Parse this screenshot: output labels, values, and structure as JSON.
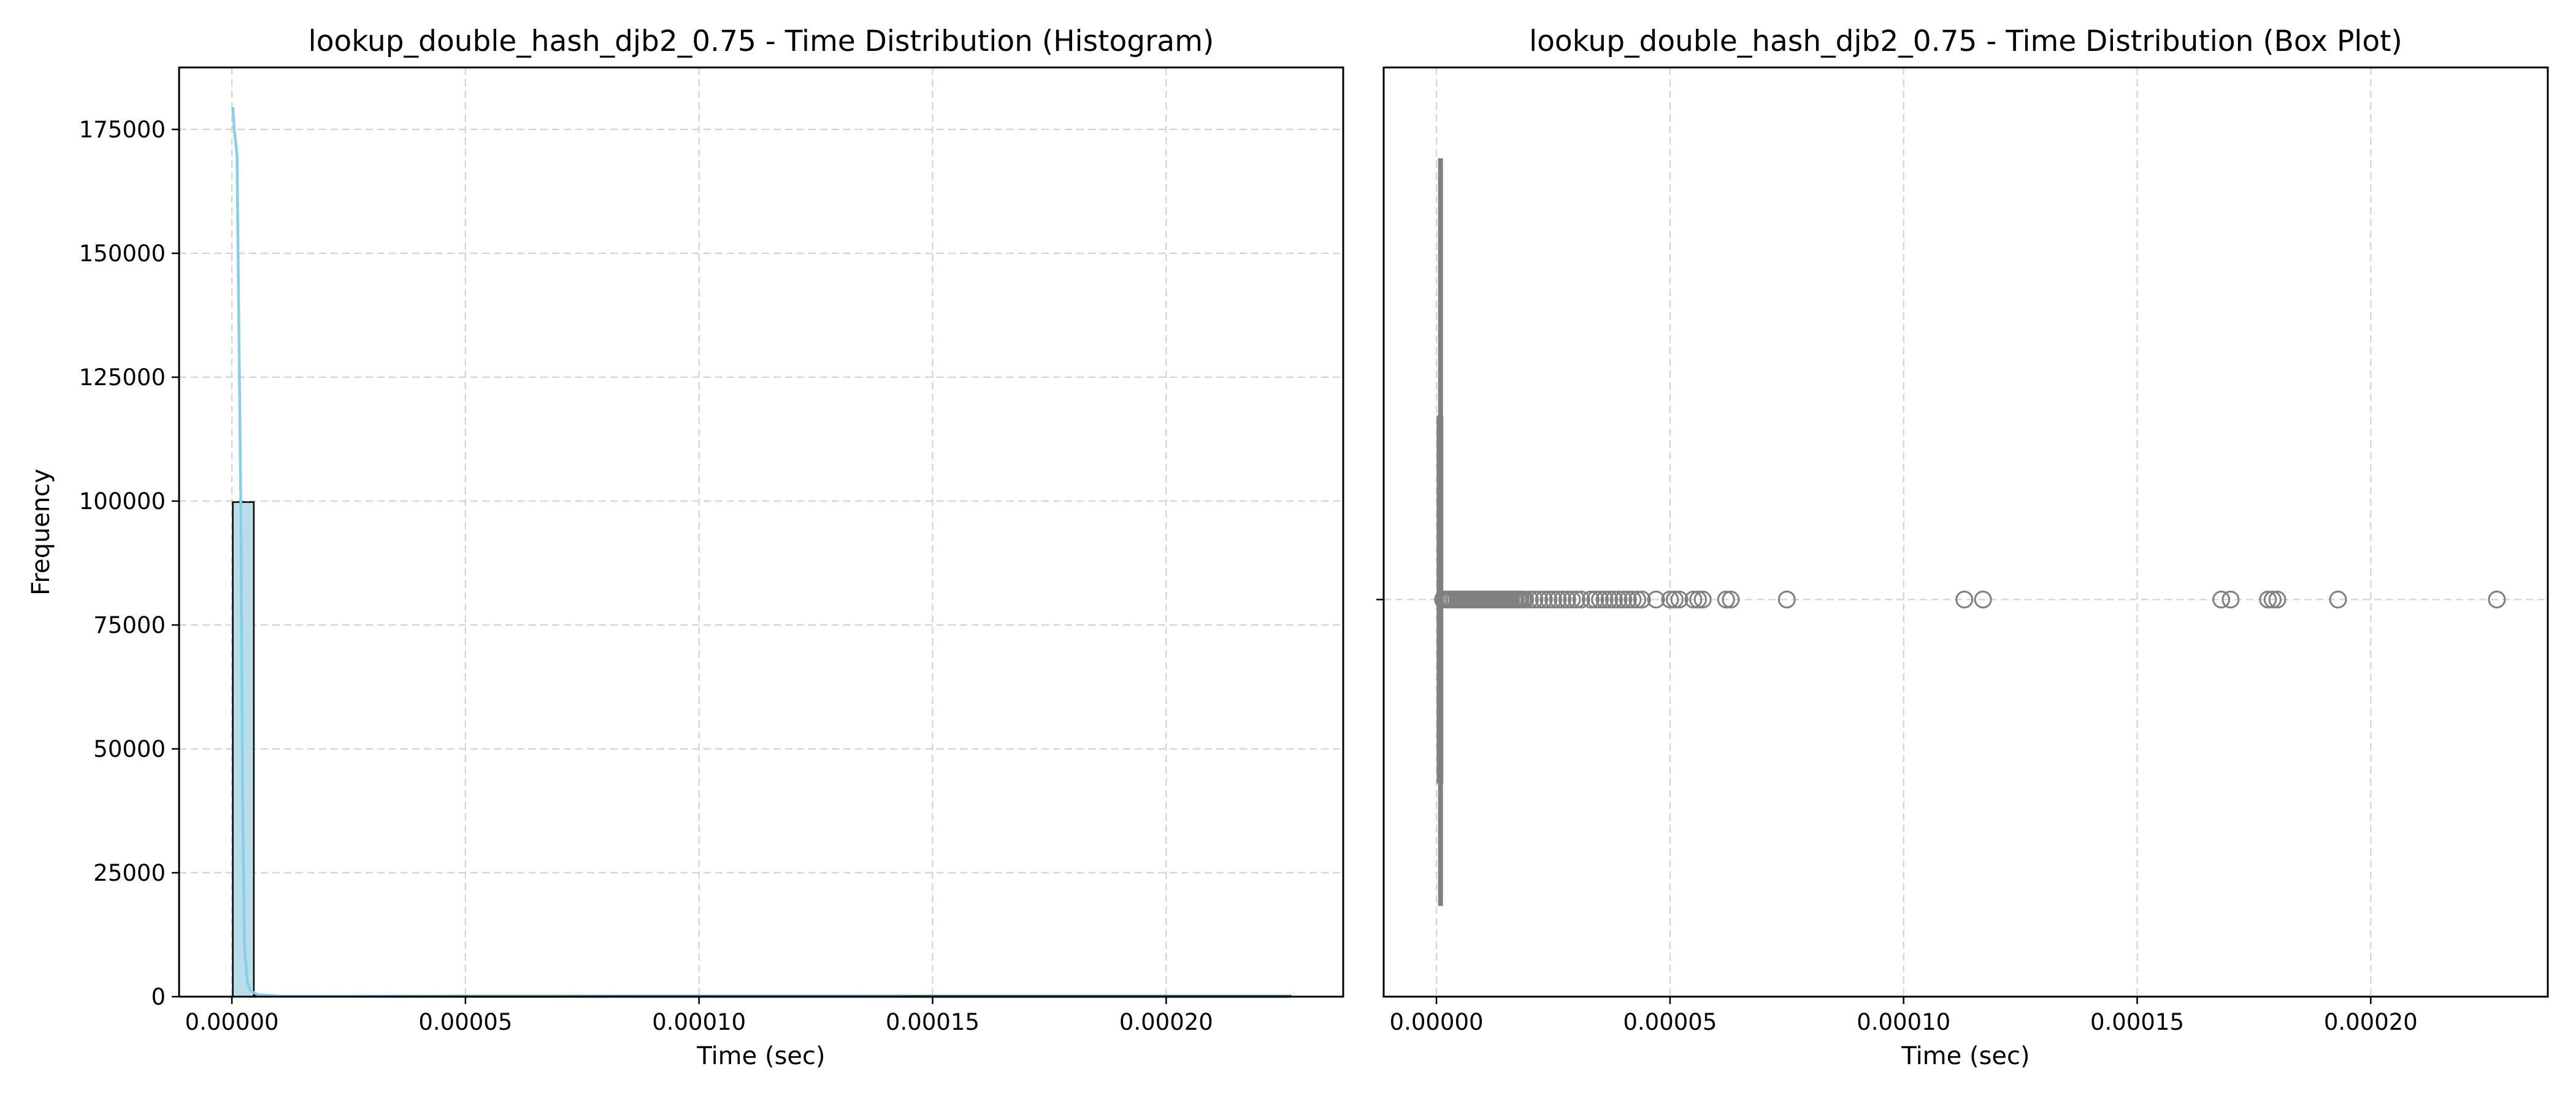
{
  "colors": {
    "hist_fill": "#add8e6",
    "hist_edge": "#000000",
    "kde_line": "#87ceeb",
    "box_gray": "#808080",
    "grid": "#d3d3d3",
    "axis": "#000000"
  },
  "chart_data": [
    {
      "type": "bar",
      "subtype": "histogram",
      "title": "lookup_double_hash_djb2_0.75 - Time Distribution (Histogram)",
      "xlabel": "Time (sec)",
      "ylabel": "Frequency",
      "xlim": [
        -1.13e-05,
        0.0002379
      ],
      "ylim": [
        0,
        187500
      ],
      "xticks": [
        0,
        5e-05,
        0.0001,
        0.00015,
        0.0002
      ],
      "xtick_labels": [
        "0.00000",
        "0.00005",
        "0.00010",
        "0.00015",
        "0.00020"
      ],
      "yticks": [
        0,
        25000,
        50000,
        75000,
        100000,
        125000,
        150000,
        175000
      ],
      "ytick_labels": [
        "0",
        "25000",
        "50000",
        "75000",
        "100000",
        "125000",
        "150000",
        "175000"
      ],
      "grid": true,
      "bins": [
        {
          "x0": 2e-07,
          "x1": 4.7e-06,
          "count": 99800
        },
        {
          "x0": 4.7e-06,
          "x1": 0.0002266,
          "count": 200
        }
      ],
      "kde": {
        "x": [
          2e-07,
          5e-07,
          1.1e-06,
          1.9e-06,
          2.3e-06,
          2.7e-06,
          3.3e-06,
          4e-06,
          5.5e-06,
          1e-05,
          5e-05,
          0.0001,
          0.00015,
          0.0002,
          0.0002266
        ],
        "y": [
          179500,
          175000,
          170000,
          100000,
          40000,
          10000,
          3000,
          1200,
          400,
          120,
          30,
          15,
          8,
          5,
          3
        ]
      }
    },
    {
      "type": "box",
      "title": "lookup_double_hash_djb2_0.75 - Time Distribution (Box Plot)",
      "xlabel": "Time (sec)",
      "xlim": [
        -1.13e-05,
        0.0002379
      ],
      "xticks": [
        0,
        5e-05,
        0.0001,
        0.00015,
        0.0002
      ],
      "xtick_labels": [
        "0.00000",
        "0.00005",
        "0.00010",
        "0.00015",
        "0.00020"
      ],
      "grid": true,
      "box": {
        "q1": 6e-07,
        "median": 7e-07,
        "q3": 8e-07,
        "whisker_low": 3e-07,
        "whisker_high": 1.2e-06
      },
      "outliers": [
        1.4e-06,
        1.8e-06,
        2.2e-06,
        2.6e-06,
        3e-06,
        3.5e-06,
        4e-06,
        4.5e-06,
        5e-06,
        5.5e-06,
        6e-06,
        6.5e-06,
        7e-06,
        7.5e-06,
        8e-06,
        8.5e-06,
        9e-06,
        9.5e-06,
        1e-05,
        1.05e-05,
        1.1e-05,
        1.15e-05,
        1.2e-05,
        1.25e-05,
        1.3e-05,
        1.35e-05,
        1.4e-05,
        1.45e-05,
        1.5e-05,
        1.55e-05,
        1.6e-05,
        1.65e-05,
        1.7e-05,
        1.75e-05,
        1.8e-05,
        1.85e-05,
        1.9e-05,
        2e-05,
        2.1e-05,
        2.2e-05,
        2.3e-05,
        2.4e-05,
        2.5e-05,
        2.6e-05,
        2.7e-05,
        2.8e-05,
        2.9e-05,
        3e-05,
        3.1e-05,
        3.3e-05,
        3.4e-05,
        3.5e-05,
        3.6e-05,
        3.7e-05,
        3.8e-05,
        3.9e-05,
        4e-05,
        4.1e-05,
        4.2e-05,
        4.3e-05,
        4.4e-05,
        4.7e-05,
        5e-05,
        5.1e-05,
        5.2e-05,
        5.5e-05,
        5.6e-05,
        5.7e-05,
        6.2e-05,
        6.3e-05,
        7.5e-05,
        0.000113,
        0.000117,
        0.000168,
        0.00017,
        0.000178,
        0.000179,
        0.00018,
        0.000193,
        0.000227
      ]
    }
  ]
}
